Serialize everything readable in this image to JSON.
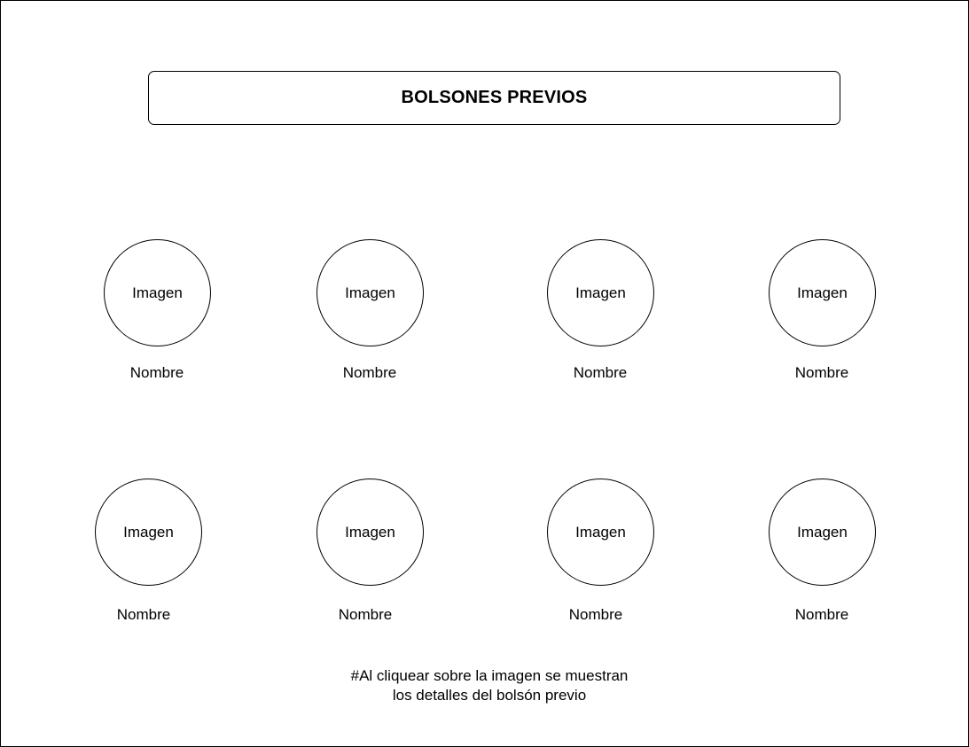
{
  "header": {
    "title": "BOLSONES PREVIOS"
  },
  "grid": {
    "rows": [
      {
        "items": [
          {
            "image_label": "Imagen",
            "name": "Nombre"
          },
          {
            "image_label": "Imagen",
            "name": "Nombre"
          },
          {
            "image_label": "Imagen",
            "name": "Nombre"
          },
          {
            "image_label": "Imagen",
            "name": "Nombre"
          }
        ]
      },
      {
        "items": [
          {
            "image_label": "Imagen",
            "name": "Nombre"
          },
          {
            "image_label": "Imagen",
            "name": "Nombre"
          },
          {
            "image_label": "Imagen",
            "name": "Nombre"
          },
          {
            "image_label": "Imagen",
            "name": "Nombre"
          }
        ]
      }
    ]
  },
  "note": {
    "line1": "#Al cliquear sobre la imagen se muestran",
    "line2": "los detalles del bolsón previo"
  }
}
